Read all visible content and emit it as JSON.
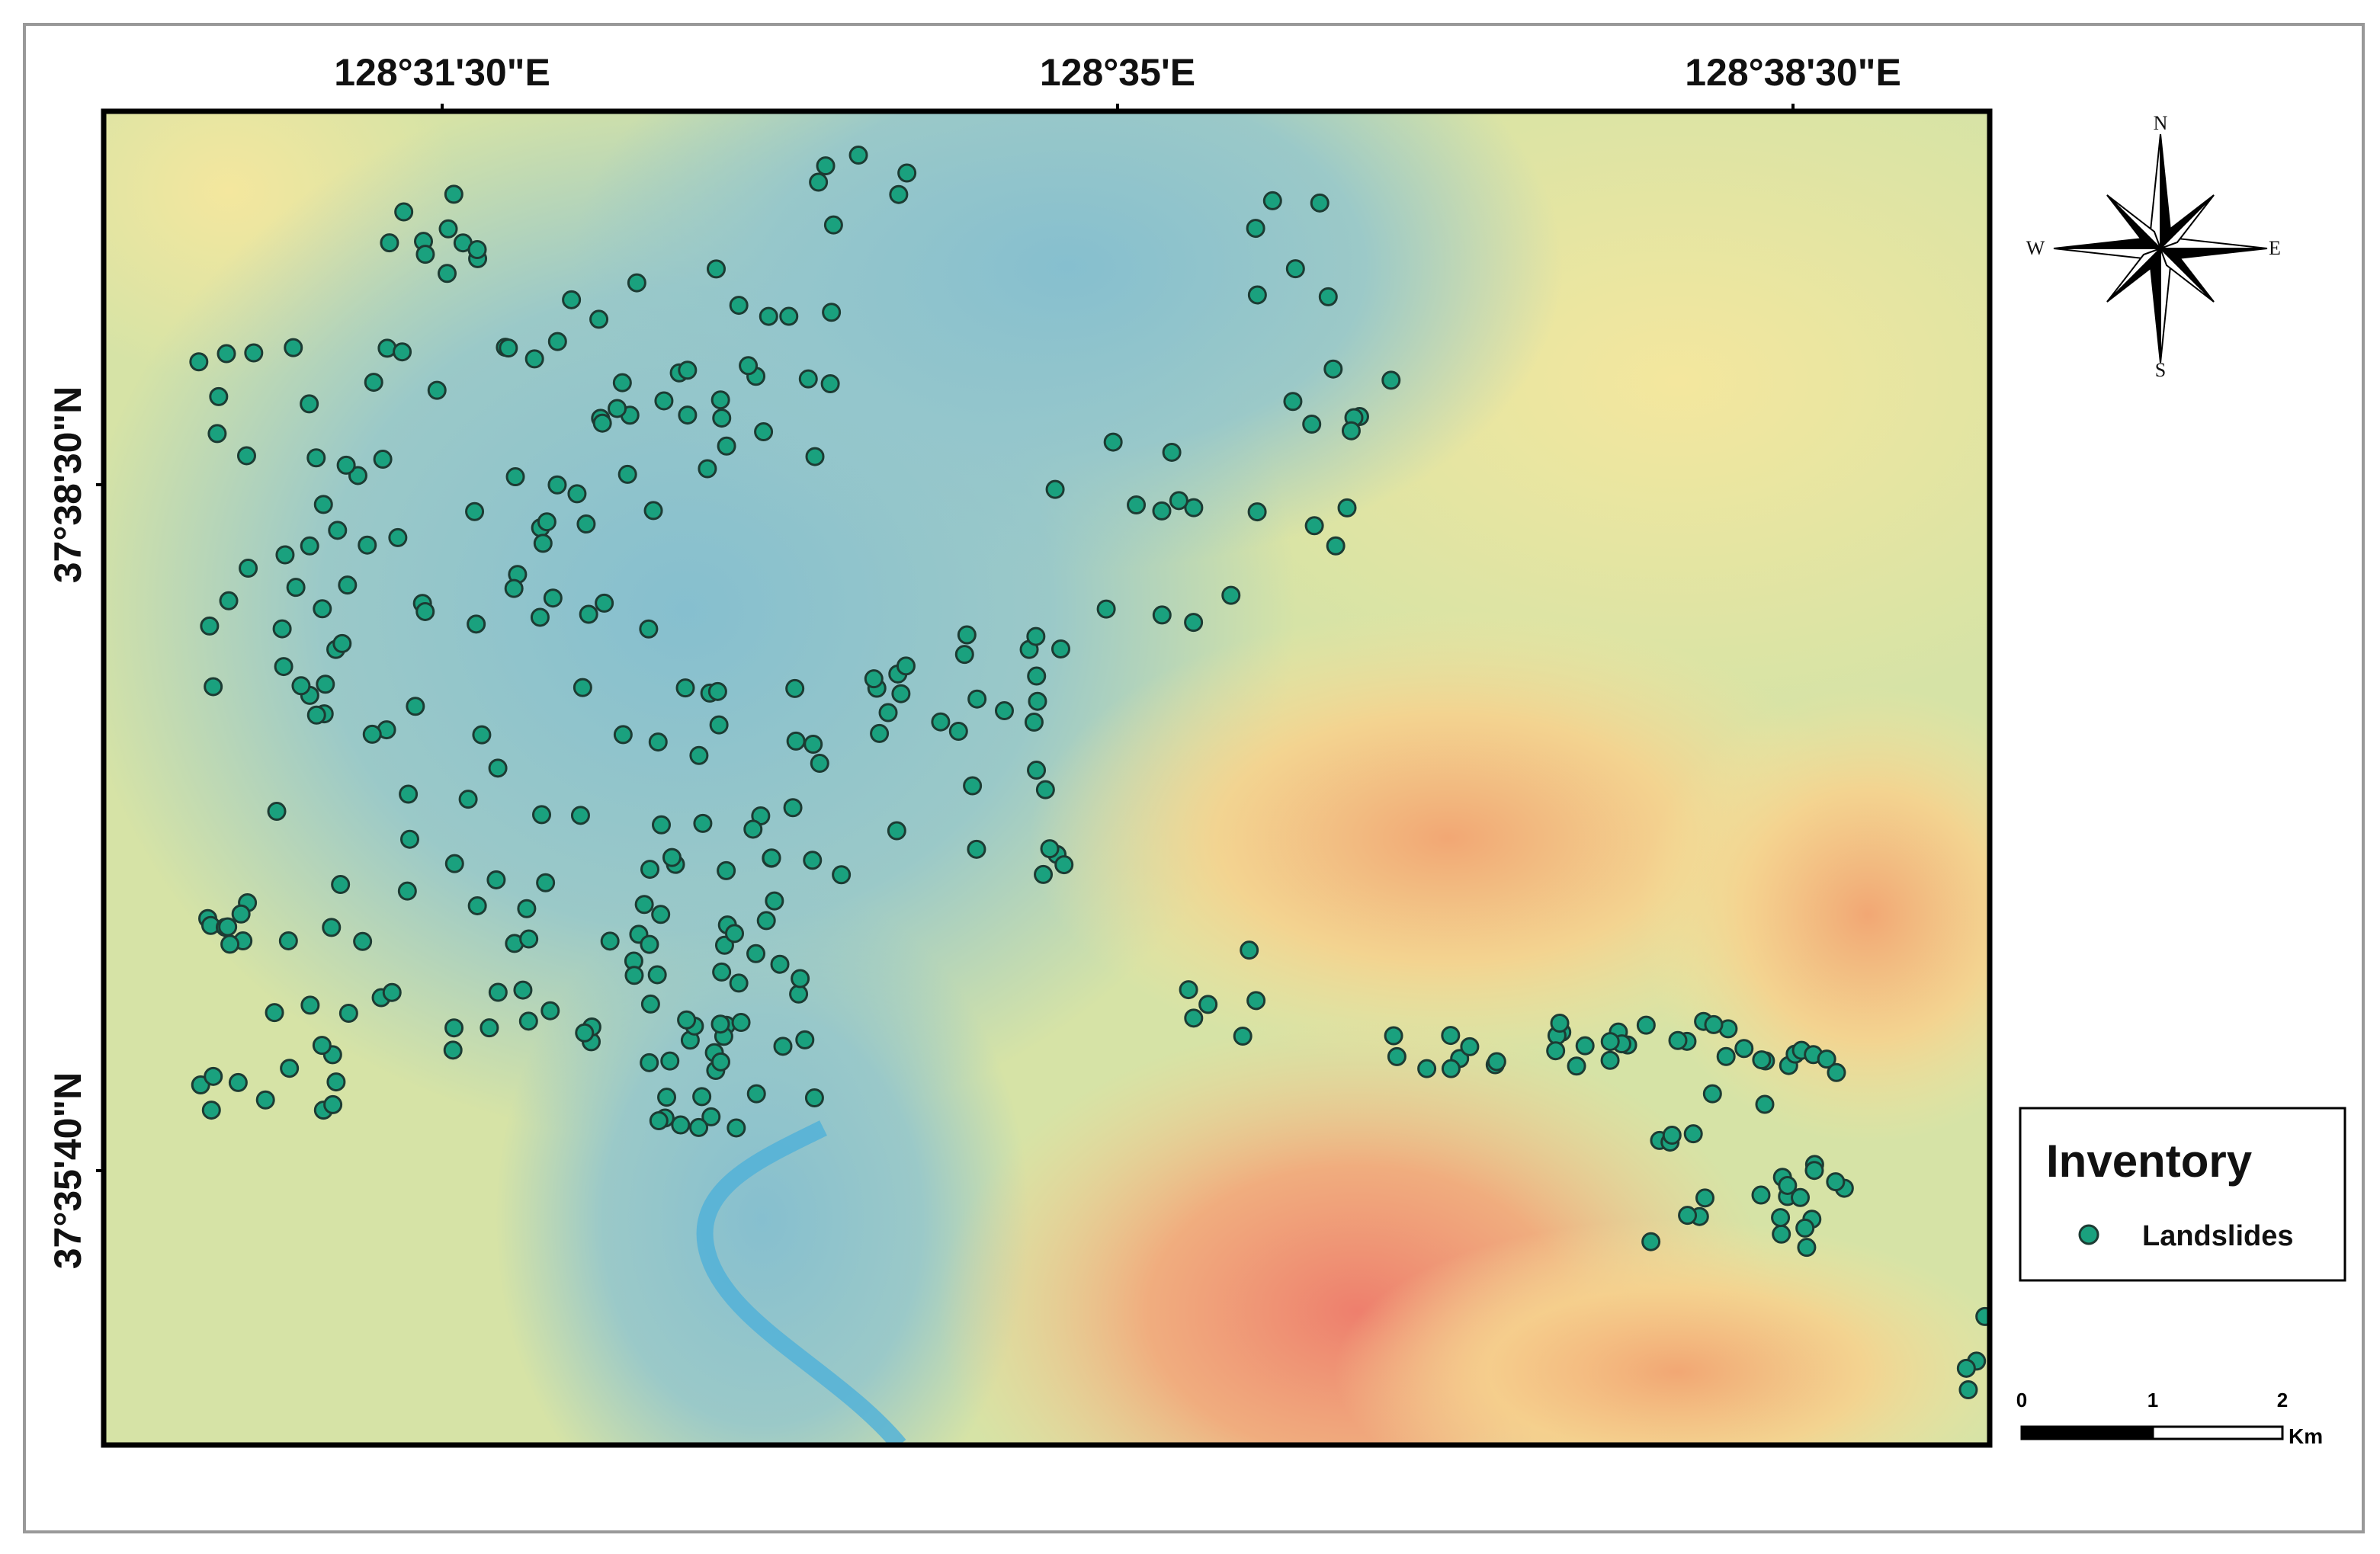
{
  "map": {
    "top_labels": [
      "128°31'30\"E",
      "128°35'E",
      "128°38'30\"E"
    ],
    "left_labels": [
      "37°38'30\"N",
      "37°35'40\"N"
    ],
    "compass": {
      "n": "N",
      "s": "S",
      "e": "E",
      "w": "W"
    },
    "legend": {
      "title": "Inventory",
      "items": [
        "Landslides"
      ]
    },
    "scale_bar": {
      "labels": [
        "0",
        "1",
        "2"
      ],
      "unit": "Km"
    }
  }
}
